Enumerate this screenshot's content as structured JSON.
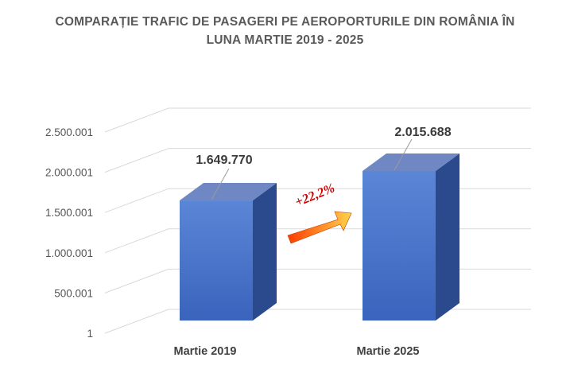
{
  "chart_data": {
    "type": "bar",
    "title_lines": [
      "COMPARAȚIE TRAFIC DE PASAGERI PE AEROPORTURILE DIN ROMÂNIA ÎN",
      "LUNA MARTIE 2019 - 2025"
    ],
    "categories": [
      "Martie 2019",
      "Martie 2025"
    ],
    "values": [
      1649770,
      2015688
    ],
    "data_labels": [
      "1.649.770",
      "2.015.688"
    ],
    "y_ticks": [
      {
        "value": 1,
        "label": "1"
      },
      {
        "value": 500001,
        "label": "500.001"
      },
      {
        "value": 1000001,
        "label": "1.000.001"
      },
      {
        "value": 1500001,
        "label": "1.500.001"
      },
      {
        "value": 2000001,
        "label": "2.000.001"
      },
      {
        "value": 2500001,
        "label": "2.500.001"
      }
    ],
    "ylim": [
      1,
      2500001
    ],
    "grid": true,
    "legend": "none",
    "annotation": {
      "text": "+22,2%",
      "from": "Martie 2019",
      "to": "Martie 2025"
    },
    "colors": {
      "bar_front_top": "#5b86d6",
      "bar_front_bottom": "#3a64bd",
      "bar_top": "#6f88c4",
      "bar_side": "#2b4a8e",
      "annotation_text": "#d40000",
      "arrow_start": "#ff3b00",
      "arrow_end": "#ffd54a"
    }
  }
}
